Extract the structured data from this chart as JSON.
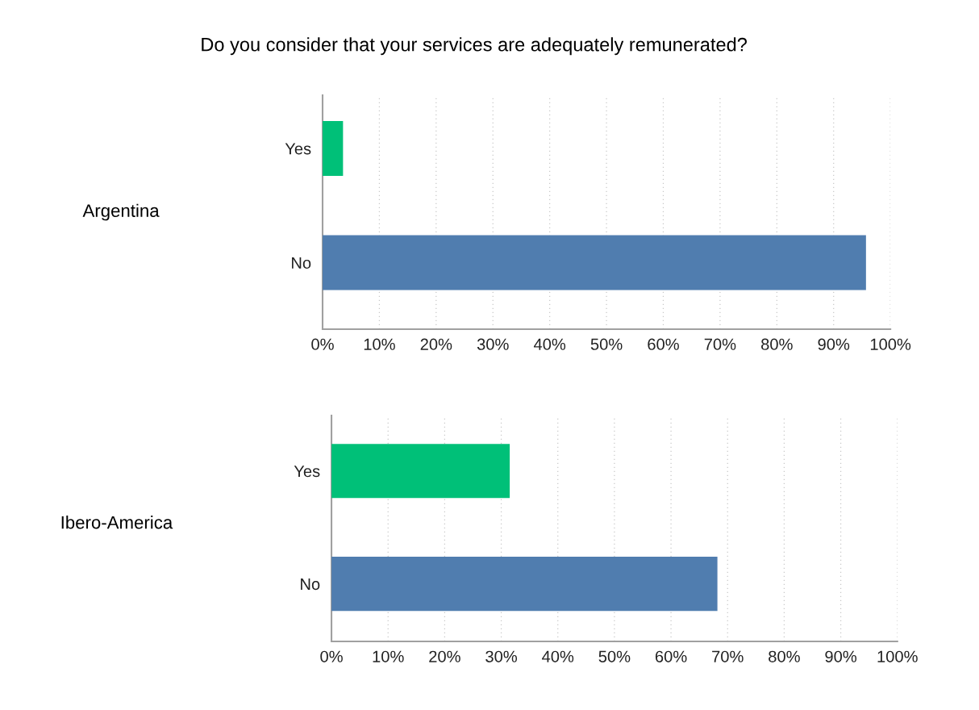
{
  "chart_data": [
    {
      "type": "bar",
      "orientation": "horizontal",
      "title": "Do you consider that your services are adequately remunerated?",
      "ylabel": "Argentina",
      "categories": [
        "Yes",
        "No"
      ],
      "values": [
        3.6,
        95.7
      ],
      "colors": [
        "#00c078",
        "#507daf"
      ],
      "xlim": [
        0,
        100
      ],
      "xticks": [
        {
          "value": 0,
          "label": "0%"
        },
        {
          "value": 10,
          "label": "10%"
        },
        {
          "value": 20,
          "label": "20%"
        },
        {
          "value": 30,
          "label": "30%"
        },
        {
          "value": 40,
          "label": "40%"
        },
        {
          "value": 50,
          "label": "50%"
        },
        {
          "value": 60,
          "label": "60%"
        },
        {
          "value": 70,
          "label": "70%"
        },
        {
          "value": 80,
          "label": "80%"
        },
        {
          "value": 90,
          "label": "90%"
        },
        {
          "value": 100,
          "label": "100%"
        }
      ],
      "grid": "x"
    },
    {
      "type": "bar",
      "orientation": "horizontal",
      "ylabel": "Ibero-America",
      "categories": [
        "Yes",
        "No"
      ],
      "values": [
        31.5,
        68.2
      ],
      "colors": [
        "#00c078",
        "#507daf"
      ],
      "xlim": [
        0,
        100
      ],
      "xticks": [
        {
          "value": 0,
          "label": "0%"
        },
        {
          "value": 10,
          "label": "10%"
        },
        {
          "value": 20,
          "label": "20%"
        },
        {
          "value": 30,
          "label": "30%"
        },
        {
          "value": 40,
          "label": "40%"
        },
        {
          "value": 50,
          "label": "50%"
        },
        {
          "value": 60,
          "label": "60%"
        },
        {
          "value": 70,
          "label": "70%"
        },
        {
          "value": 80,
          "label": "80%"
        },
        {
          "value": 90,
          "label": "90%"
        },
        {
          "value": 100,
          "label": "100%"
        }
      ],
      "grid": "x"
    }
  ]
}
